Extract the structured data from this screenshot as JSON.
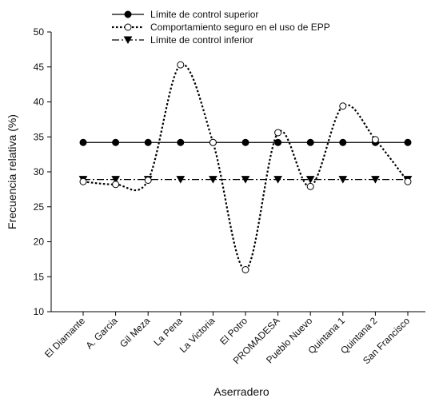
{
  "chart_data": {
    "type": "line",
    "title": "",
    "xlabel": "Aserradero",
    "ylabel": "Frecuencia relativa (%)",
    "ylim": [
      10,
      50
    ],
    "yticks": [
      10,
      15,
      20,
      25,
      30,
      35,
      40,
      45,
      50
    ],
    "grid": false,
    "legend_position": "top",
    "categories": [
      "El Diamante",
      "A. Garcia",
      "Gil Meza",
      "La Pena",
      "La Victoria",
      "El Potro",
      "PROMADESA",
      "Pueblo Nuevo",
      "Quintana 1",
      "Quintana 2",
      "San Francisco"
    ],
    "series": [
      {
        "name": "Límite de control superior",
        "values": [
          34.2,
          34.2,
          34.2,
          34.2,
          34.2,
          34.2,
          34.2,
          34.2,
          34.2,
          34.2,
          34.2
        ],
        "marker": "filled-circle",
        "line": "solid",
        "smooth": false
      },
      {
        "name": "Comportamiento seguro en el uso de EPP",
        "values": [
          28.6,
          28.2,
          28.8,
          45.3,
          34.2,
          16.0,
          35.6,
          27.9,
          39.4,
          34.6,
          28.6
        ],
        "marker": "open-circle",
        "line": "dotted",
        "smooth": true
      },
      {
        "name": "Límite de control inferior",
        "values": [
          28.9,
          28.9,
          28.9,
          28.9,
          28.9,
          28.9,
          28.9,
          28.9,
          28.9,
          28.9,
          28.9
        ],
        "marker": "filled-triangle-down",
        "line": "dash-dot",
        "smooth": false
      }
    ]
  },
  "colors": {
    "ink": "#000000",
    "background": "#ffffff"
  }
}
